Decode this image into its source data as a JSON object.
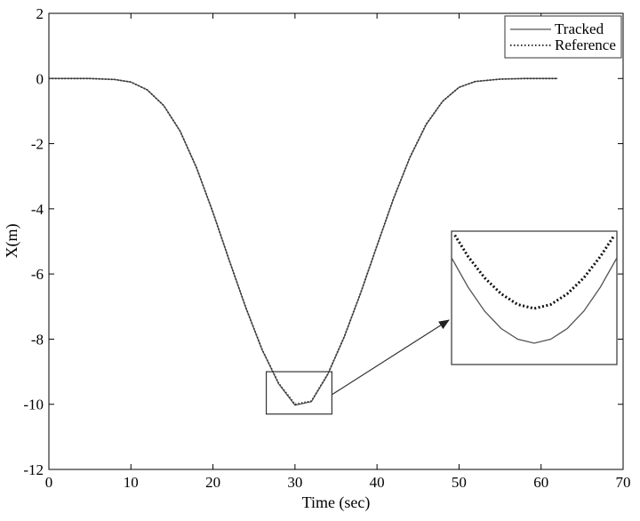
{
  "chart_data": {
    "type": "line",
    "title": "",
    "xlabel": "Time (sec)",
    "ylabel": "X(m)",
    "xlim": [
      0,
      70
    ],
    "ylim": [
      -12,
      2
    ],
    "xticks": [
      "0",
      "10",
      "20",
      "30",
      "40",
      "50",
      "60",
      "70"
    ],
    "yticks": [
      "2",
      "0",
      "-2",
      "-4",
      "-6",
      "-8",
      "-10",
      "-12"
    ],
    "grid": false,
    "legend_position": "top-right",
    "legend": [
      "Tracked",
      "Reference"
    ],
    "series": [
      {
        "name": "Tracked",
        "style": "solid",
        "color": "#555555",
        "x": [
          0,
          5,
          8,
          10,
          12,
          14,
          16,
          18,
          20,
          22,
          24,
          26,
          28,
          30,
          32,
          34,
          36,
          38,
          40,
          42,
          44,
          46,
          48,
          50,
          52,
          55,
          58,
          62
        ],
        "y": [
          0,
          0,
          -0.03,
          -0.11,
          -0.35,
          -0.83,
          -1.62,
          -2.74,
          -4.11,
          -5.59,
          -7.03,
          -8.33,
          -9.37,
          -10.03,
          -9.92,
          -9.08,
          -7.94,
          -6.59,
          -5.14,
          -3.7,
          -2.43,
          -1.41,
          -0.7,
          -0.27,
          -0.09,
          -0.02,
          0,
          0
        ]
      },
      {
        "name": "Reference",
        "style": "dotted",
        "color": "#333333",
        "x": [
          0,
          5,
          8,
          10,
          12,
          14,
          16,
          18,
          20,
          22,
          24,
          26,
          28,
          30,
          32,
          34,
          36,
          38,
          40,
          42,
          44,
          46,
          48,
          50,
          52,
          55,
          58,
          62
        ],
        "y": [
          0,
          0,
          -0.03,
          -0.11,
          -0.35,
          -0.83,
          -1.62,
          -2.74,
          -4.11,
          -5.59,
          -7.03,
          -8.32,
          -9.35,
          -10.0,
          -9.9,
          -9.07,
          -7.93,
          -6.58,
          -5.13,
          -3.69,
          -2.42,
          -1.4,
          -0.7,
          -0.27,
          -0.09,
          -0.02,
          0,
          0
        ]
      }
    ],
    "zoom": {
      "source_box": {
        "xlim": [
          26.5,
          34.5
        ],
        "ylim": [
          -10.3,
          -9.0
        ]
      },
      "inset_series": [
        {
          "name": "Tracked",
          "style": "solid",
          "x": [
            0,
            0.1,
            0.2,
            0.3,
            0.4,
            0.5,
            0.6,
            0.7,
            0.8,
            0.9,
            1
          ],
          "y": [
            0.2,
            0.42,
            0.6,
            0.73,
            0.81,
            0.84,
            0.81,
            0.73,
            0.6,
            0.42,
            0.2
          ]
        },
        {
          "name": "Reference",
          "style": "dotted",
          "x": [
            0.02,
            0.1,
            0.2,
            0.3,
            0.4,
            0.5,
            0.6,
            0.7,
            0.8,
            0.9,
            0.985
          ],
          "y": [
            0.03,
            0.19,
            0.35,
            0.47,
            0.55,
            0.58,
            0.55,
            0.47,
            0.35,
            0.19,
            0.03
          ]
        }
      ]
    }
  }
}
